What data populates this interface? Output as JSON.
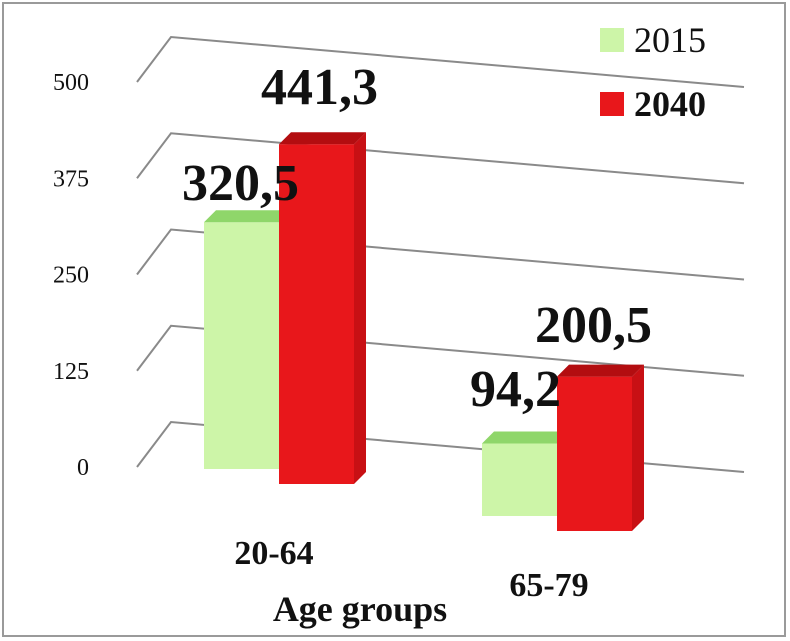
{
  "chart_data": {
    "type": "bar",
    "categories": [
      "20-64",
      "65-79"
    ],
    "series": [
      {
        "name": "2015",
        "values": [
          320.5,
          94.2
        ],
        "labels": [
          "320,5",
          "94,2"
        ],
        "color": "#cdf5a8",
        "top_color": "#8fd66a",
        "side_color": "#b4e88e"
      },
      {
        "name": "2040",
        "values": [
          441.3,
          200.5
        ],
        "labels": [
          "441,3",
          "200,5"
        ],
        "color": "#e8171b",
        "top_color": "#b30d10",
        "side_color": "#c81014"
      }
    ],
    "xlabel": "Age groups",
    "ylabel": "",
    "title": "",
    "yticks": [
      "0",
      "125",
      "250",
      "375",
      "500"
    ],
    "ylim": [
      0,
      500
    ],
    "grid": true,
    "legend": "top-right",
    "style": "3d-clustered-column"
  }
}
